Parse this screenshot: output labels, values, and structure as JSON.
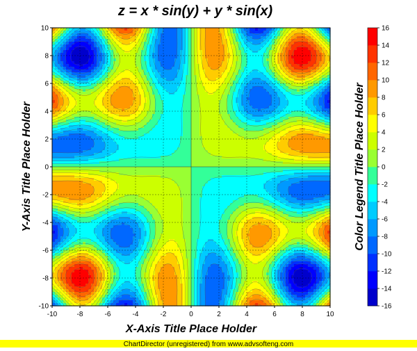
{
  "chart_data": {
    "type": "contour",
    "title": "z = x * sin(y) + y * sin(x)",
    "formula": "z = x * sin(y) + y * sin(x)",
    "xlabel": "X-Axis Title Place Holder",
    "ylabel": "Y-Axis Title Place Holder",
    "xlim": [
      -10,
      10
    ],
    "ylim": [
      -10,
      10
    ],
    "x_ticks": [
      -10,
      -8,
      -6,
      -4,
      -2,
      0,
      2,
      4,
      6,
      8,
      10
    ],
    "y_ticks": [
      -10,
      -8,
      -6,
      -4,
      -2,
      0,
      2,
      4,
      6,
      8,
      10
    ],
    "grid": true,
    "grid_style": "dashed",
    "colorbar": {
      "title": "Color Legend Title Place Holder",
      "placement": "right",
      "levels": [
        -16,
        -14,
        -12,
        -10,
        -8,
        -6,
        -4,
        -2,
        0,
        2,
        4,
        6,
        8,
        10,
        12,
        14,
        16
      ],
      "colors": [
        "#0000cc",
        "#0000ff",
        "#0030ff",
        "#0068ff",
        "#0099ff",
        "#00ccff",
        "#00ffff",
        "#33ff99",
        "#99ff33",
        "#ccff00",
        "#ffff00",
        "#ffcc00",
        "#ff9900",
        "#ff6600",
        "#ff3300",
        "#ff0000"
      ]
    }
  },
  "footer": {
    "text": "ChartDirector (unregistered) from www.advsofteng.com",
    "background": "#ffff00"
  }
}
